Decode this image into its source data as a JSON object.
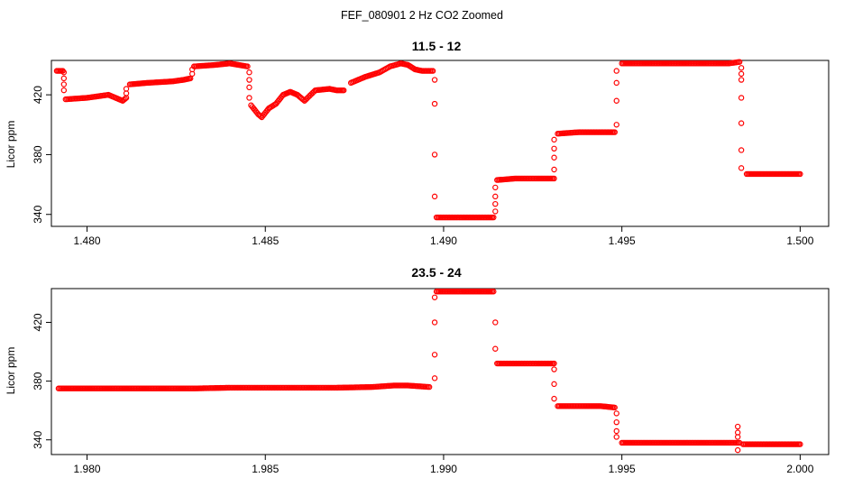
{
  "figure": {
    "title": "FEF_080901  2 Hz CO2 Zoomed"
  },
  "chart_data": [
    {
      "type": "scatter",
      "title": "11.5 - 12",
      "xlabel": "",
      "ylabel": "Licor ppm",
      "xlim": [
        1.479,
        1.5008
      ],
      "ylim": [
        332,
        443
      ],
      "xticks": [
        1.48,
        1.485,
        1.49,
        1.495,
        1.5
      ],
      "xtick_labels": [
        "1.480",
        "1.485",
        "1.490",
        "1.495",
        "1.500"
      ],
      "yticks": [
        340,
        380,
        420
      ],
      "ytick_labels": [
        "340",
        "380",
        "420"
      ],
      "color": "#ff0000",
      "marker": "open-circle",
      "series": [
        {
          "segments": [
            {
              "x": [
                1.47915,
                1.47932
              ],
              "y": [
                436,
                436
              ]
            },
            {
              "x": [
                1.4794,
                1.48,
                1.4806,
                1.481,
                1.4811
              ],
              "y": [
                417,
                418,
                420,
                416,
                418
              ]
            },
            {
              "x": [
                1.4812,
                1.4817,
                1.4824,
                1.4827,
                1.4829
              ],
              "y": [
                427,
                428,
                429,
                430,
                431
              ]
            },
            {
              "x": [
                1.483,
                1.4836,
                1.484,
                1.4845
              ],
              "y": [
                439,
                440,
                441,
                439
              ]
            },
            {
              "x": [
                1.4846,
                1.4848,
                1.4849,
                1.4851,
                1.4853,
                1.4855,
                1.4857,
                1.4859,
                1.4861,
                1.4864,
                1.4868,
                1.487,
                1.4872
              ],
              "y": [
                413,
                407,
                405,
                411,
                414,
                420,
                422,
                420,
                416,
                423,
                424,
                423,
                423
              ]
            },
            {
              "x": [
                1.4874,
                1.4878,
                1.4882,
                1.4885,
                1.4888,
                1.489,
                1.4892,
                1.4894,
                1.4897
              ],
              "y": [
                428,
                432,
                435,
                439,
                441,
                440,
                437,
                436,
                436
              ]
            },
            {
              "x": [
                1.4898,
                1.4905,
                1.491,
                1.4914
              ],
              "y": [
                338,
                338,
                338,
                338
              ]
            },
            {
              "x": [
                1.4915,
                1.492,
                1.4926,
                1.4931
              ],
              "y": [
                363,
                364,
                364,
                364
              ]
            },
            {
              "x": [
                1.4932,
                1.4938,
                1.4944,
                1.4948
              ],
              "y": [
                394,
                395,
                395,
                395
              ]
            },
            {
              "x": [
                1.495,
                1.496,
                1.497,
                1.498,
                1.4983
              ],
              "y": [
                441,
                441,
                441,
                441,
                442
              ]
            },
            {
              "x": [
                1.4985,
                1.499,
                1.4995,
                1.5
              ],
              "y": [
                367,
                367,
                367,
                367
              ]
            }
          ],
          "transitions": [
            {
              "x": 1.47935,
              "y": [
                435,
                431,
                427,
                423
              ]
            },
            {
              "x": 1.4811,
              "y": [
                421,
                424
              ]
            },
            {
              "x": 1.48295,
              "y": [
                434,
                437
              ]
            },
            {
              "x": 1.48455,
              "y": [
                435,
                430,
                425,
                418
              ]
            },
            {
              "x": 1.48975,
              "y": [
                430,
                414,
                380,
                352
              ]
            },
            {
              "x": 1.49145,
              "y": [
                342,
                347,
                352,
                358
              ]
            },
            {
              "x": 1.4931,
              "y": [
                370,
                378,
                384,
                390
              ]
            },
            {
              "x": 1.49485,
              "y": [
                400,
                416,
                428,
                436
              ]
            },
            {
              "x": 1.49835,
              "y": [
                438,
                434,
                430,
                418,
                401,
                383,
                371
              ]
            }
          ]
        }
      ]
    },
    {
      "type": "scatter",
      "title": "23.5 - 24",
      "xlabel": "",
      "ylabel": "Licor ppm",
      "xlim": [
        1.979,
        2.0008
      ],
      "ylim": [
        330,
        443
      ],
      "xticks": [
        1.98,
        1.985,
        1.99,
        1.995,
        2.0
      ],
      "xtick_labels": [
        "1.980",
        "1.985",
        "1.990",
        "1.995",
        "2.000"
      ],
      "yticks": [
        340,
        380,
        420
      ],
      "ytick_labels": [
        "340",
        "380",
        "420"
      ],
      "color": "#ff0000",
      "marker": "open-circle",
      "series": [
        {
          "segments": [
            {
              "x": [
                1.9792,
                1.98,
                1.981,
                1.982,
                1.983,
                1.984,
                1.985,
                1.986,
                1.987,
                1.988,
                1.9886,
                1.989,
                1.9896
              ],
              "y": [
                375,
                375,
                375,
                375,
                375,
                375.5,
                375.5,
                375.5,
                375.5,
                376,
                377,
                377,
                376
              ]
            },
            {
              "x": [
                1.9898,
                1.9905,
                1.991,
                1.9914
              ],
              "y": [
                441,
                441,
                441,
                441
              ]
            },
            {
              "x": [
                1.9915,
                1.992,
                1.9926,
                1.9931
              ],
              "y": [
                392,
                392,
                392,
                392
              ]
            },
            {
              "x": [
                1.9932,
                1.9938,
                1.9944,
                1.9948
              ],
              "y": [
                363,
                363,
                363,
                362
              ]
            },
            {
              "x": [
                1.995,
                1.996,
                1.997,
                1.998,
                1.9983
              ],
              "y": [
                338,
                338,
                338,
                338,
                338
              ]
            },
            {
              "x": [
                1.9984,
                1.999,
                1.9995,
                2.0
              ],
              "y": [
                337,
                337,
                337,
                337
              ]
            }
          ],
          "transitions": [
            {
              "x": 1.98975,
              "y": [
                382,
                398,
                420,
                437
              ]
            },
            {
              "x": 1.99145,
              "y": [
                420,
                402
              ]
            },
            {
              "x": 1.9931,
              "y": [
                388,
                378,
                368
              ]
            },
            {
              "x": 1.99485,
              "y": [
                358,
                352,
                346,
                342
              ]
            },
            {
              "x": 1.99825,
              "y": [
                349,
                345,
                342,
                333
              ]
            }
          ]
        }
      ]
    }
  ]
}
